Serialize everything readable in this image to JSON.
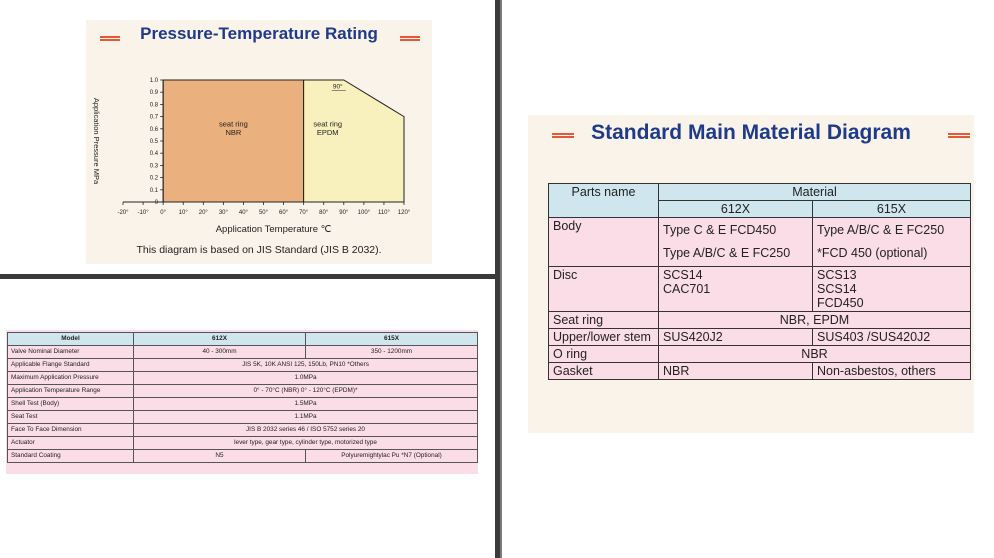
{
  "chart_panel": {
    "title": "Pressure-Temperature Rating",
    "caption": "This diagram is based on JIS Standard (JIS B 2032).",
    "colors": {
      "nbr_fill": "#eab07e",
      "epdm_fill": "#f8f0bd",
      "title": "#1e3a8a",
      "deco": "#e25a3a"
    }
  },
  "chart_data": {
    "type": "area",
    "xlabel": "Application Temperature ℃",
    "ylabel": "Application Pressure MPa",
    "xlim": [
      -20,
      120
    ],
    "ylim": [
      0,
      1.0
    ],
    "x_ticks": [
      "-20°",
      "-10°",
      "0°",
      "10°",
      "20°",
      "30°",
      "40°",
      "50°",
      "60°",
      "70°",
      "80°",
      "90°",
      "100°",
      "110°",
      "120°"
    ],
    "x_tick_values": [
      -20,
      -10,
      0,
      10,
      20,
      30,
      40,
      50,
      60,
      70,
      80,
      90,
      100,
      110,
      120
    ],
    "y_ticks": [
      "1.0",
      "0.9",
      "0.8",
      "0.7",
      "0.6",
      "0.5",
      "0.4",
      "0.3",
      "0.2",
      "0.1",
      "0"
    ],
    "y_tick_values": [
      1.0,
      0.9,
      0.8,
      0.7,
      0.6,
      0.5,
      0.4,
      0.3,
      0.2,
      0.1,
      0
    ],
    "regions": [
      {
        "label": "seat ring\nNBR",
        "x": [
          0,
          70
        ],
        "y": [
          0,
          1.0
        ]
      },
      {
        "label": "seat ring\nEPDM",
        "points": [
          [
            70,
            0
          ],
          [
            70,
            1.0
          ],
          [
            90,
            1.0
          ],
          [
            120,
            0.7
          ],
          [
            120,
            0
          ]
        ]
      }
    ],
    "annotation": "90°"
  },
  "spec_table": {
    "headers": [
      "Model",
      "612X",
      "615X"
    ],
    "rows": [
      {
        "label": "Valve Nominal Diameter",
        "a": "40 - 300mm",
        "b": "350 - 1200mm"
      },
      {
        "label": "Applicable Flange Standard",
        "span": "JIS 5K, 10K  ANSI 125, 150Lb,  PN10  *Others"
      },
      {
        "label": "Maximum Application Pressure",
        "span": "1.0MPa"
      },
      {
        "label": "Application Temperature Range",
        "span": "0° - 70°C (NBR)  0° - 120°C (EPDM)*"
      },
      {
        "label": "Shell Test (Body)",
        "span": "1.5MPa"
      },
      {
        "label": "Seat Test",
        "span": "1.1MPa"
      },
      {
        "label": "Face To Face Dimension",
        "span": "JIS B 2032 series 46 / ISO 5752 series 20"
      },
      {
        "label": "Actuator",
        "span": "lever type, gear type, cylinder type, motorized type"
      },
      {
        "label": "Standard Coating",
        "a": "N5",
        "b": "Polyuremightylac Pu  *N7 (Optional)"
      }
    ]
  },
  "material_panel": {
    "title": "Standard Main Material Diagram",
    "header_parts": "Parts name",
    "header_material": "Material",
    "header_612": "612X",
    "header_615": "615X",
    "rows": [
      {
        "part": "Body",
        "a": [
          "Type C & E FCD450",
          "Type A/B/C & E FC250"
        ],
        "b": [
          "Type A/B/C & E FC250",
          "*FCD 450 (optional)"
        ]
      },
      {
        "part": "Disc",
        "a": [
          "SCS14",
          "CAC701"
        ],
        "b": [
          "SCS13",
          "SCS14",
          "FCD450"
        ]
      },
      {
        "part": "Seat ring",
        "span": "NBR, EPDM"
      },
      {
        "part": "Upper/lower stem",
        "a": [
          "SUS420J2"
        ],
        "b": [
          "SUS403 /SUS420J2"
        ]
      },
      {
        "part": "O ring",
        "span": "NBR"
      },
      {
        "part": "Gasket",
        "a": [
          "NBR"
        ],
        "b": [
          "Non-asbestos, others"
        ]
      }
    ]
  }
}
